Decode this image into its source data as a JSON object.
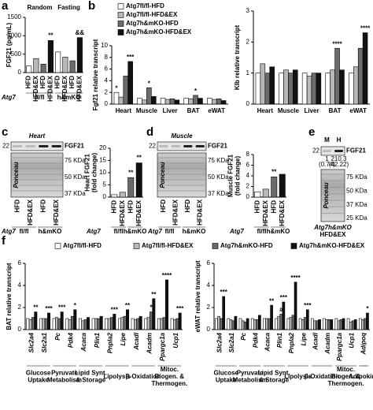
{
  "panel_labels": [
    "a",
    "b",
    "c",
    "d",
    "e",
    "f"
  ],
  "chart_data": [
    {
      "type": "bar",
      "ylabel": "FGF21 (pg/mL)",
      "categories": [
        "HFD",
        "HFD&EX",
        "HFD",
        "HFD&EX",
        "HFD",
        "HFD&EX",
        "HFD",
        "HFD&EX"
      ],
      "values": [
        180,
        380,
        230,
        870,
        560,
        420,
        320,
        950
      ],
      "colors": [
        "#ffffff",
        "#b8b8b8",
        "#6b6b6b",
        "#111111",
        "#ffffff",
        "#b8b8b8",
        "#6b6b6b",
        "#111111"
      ],
      "annotations": [
        null,
        null,
        null,
        "**",
        null,
        null,
        null,
        "&&"
      ],
      "ylim": [
        0,
        1500
      ],
      "yticks": [
        0,
        500,
        1000,
        1500
      ],
      "top_groups": [
        {
          "label": "Random",
          "span": [
            0,
            3
          ]
        },
        {
          "label": "Fasting",
          "span": [
            4,
            7
          ]
        }
      ],
      "genotype": {
        "label": "Atg7",
        "groups": [
          {
            "label": "fl/fl",
            "span": [
              0,
              3
            ]
          },
          {
            "label": "h&mKO",
            "span": [
              4,
              7
            ]
          }
        ]
      }
    },
    {
      "type": "bar",
      "ylabel": "Fgf21 relative transcript",
      "categories": [
        "Heart",
        "Muscle",
        "Liver",
        "BAT",
        "eWAT"
      ],
      "ylim": [
        0,
        10
      ],
      "yticks": [
        0,
        2,
        4,
        6,
        8,
        10
      ],
      "series": [
        {
          "name": "Atg7fl/fl-HFD",
          "color": "#ffffff",
          "values": [
            2.0,
            1.0,
            1.0,
            1.0,
            1.0
          ],
          "annotations": [
            "*",
            null,
            null,
            null,
            null
          ]
        },
        {
          "name": "Atg7fl/fl-HFD&EX",
          "color": "#b8b8b8",
          "values": [
            1.2,
            0.7,
            0.8,
            0.9,
            0.8
          ],
          "annotations": [
            null,
            null,
            null,
            null,
            null
          ]
        },
        {
          "name": "Atg7h&mKO-HFD",
          "color": "#6b6b6b",
          "values": [
            4.8,
            2.8,
            0.9,
            1.5,
            0.9
          ],
          "annotations": [
            null,
            "*",
            null,
            "*",
            null
          ]
        },
        {
          "name": "Atg7h&mKO-HFD&EX",
          "color": "#111111",
          "values": [
            7.3,
            1.3,
            0.7,
            1.0,
            0.6
          ],
          "annotations": [
            "***",
            null,
            null,
            null,
            null
          ]
        }
      ]
    },
    {
      "type": "bar",
      "ylabel": "Klb relative transcript",
      "categories": [
        "Heart",
        "Muscle",
        "Liver",
        "BAT",
        "eWAT"
      ],
      "ylim": [
        0,
        3
      ],
      "yticks": [
        0,
        1,
        2,
        3
      ],
      "series": [
        {
          "color": "#ffffff",
          "values": [
            1.0,
            1.0,
            1.0,
            1.0,
            1.0
          ],
          "annotations": [
            null,
            null,
            null,
            null,
            null
          ]
        },
        {
          "color": "#b8b8b8",
          "values": [
            1.3,
            1.1,
            0.9,
            1.1,
            1.2
          ],
          "annotations": [
            null,
            null,
            null,
            null,
            null
          ]
        },
        {
          "color": "#6b6b6b",
          "values": [
            1.0,
            1.0,
            1.0,
            1.8,
            1.8
          ],
          "annotations": [
            null,
            null,
            null,
            "****",
            null
          ]
        },
        {
          "color": "#111111",
          "values": [
            1.2,
            1.1,
            1.0,
            1.1,
            2.3
          ],
          "annotations": [
            null,
            null,
            null,
            null,
            "****"
          ]
        }
      ]
    },
    {
      "type": "bar",
      "ylabel": "Heart FGF21\n(fold change)",
      "categories": [
        "HFD",
        "HFD&EX",
        "HFD",
        "HFD&EX"
      ],
      "values": [
        1,
        2,
        8,
        14
      ],
      "colors": [
        "#ffffff",
        "#b8b8b8",
        "#6b6b6b",
        "#111111"
      ],
      "annotations": [
        null,
        null,
        "**",
        "**"
      ],
      "ylim": [
        0,
        20
      ],
      "yticks": [
        0,
        5,
        10,
        15,
        20
      ],
      "genotype": {
        "label": "Atg7",
        "groups": [
          {
            "label": "fl/fl",
            "span": [
              0,
              1
            ]
          },
          {
            "label": "h&mKO",
            "span": [
              2,
              3
            ]
          }
        ]
      }
    },
    {
      "type": "bar",
      "ylabel": "Muscle FGF21\n(fold change)",
      "categories": [
        "HFD",
        "HFD&EX",
        "HFD",
        "HFD&EX"
      ],
      "values": [
        1,
        1.5,
        3.8,
        4.3
      ],
      "colors": [
        "#ffffff",
        "#b8b8b8",
        "#6b6b6b",
        "#111111"
      ],
      "annotations": [
        null,
        null,
        "**",
        null
      ],
      "ylim": [
        0,
        8
      ],
      "yticks": [
        0,
        2,
        4,
        6,
        8
      ],
      "genotype": {
        "label": "Atg7",
        "groups": [
          {
            "label": "fl/fl",
            "span": [
              0,
              1
            ]
          },
          {
            "label": "h&mKO",
            "span": [
              2,
              3
            ]
          }
        ]
      }
    },
    {
      "type": "bar",
      "ylabel": "BAT relative transcript",
      "categories": [
        "Slc2a4",
        "Slc2a1",
        "Pc",
        "Pdk4",
        "Acaca",
        "Plin1",
        "Pnpla2",
        "Lipe",
        "Acadl",
        "Acadm",
        "Ppargc1a",
        "Ucp1"
      ],
      "ylim": [
        0,
        6
      ],
      "yticks": [
        0,
        2,
        4,
        6
      ],
      "series": [
        {
          "name": "Atg7fl/fl-HFD",
          "color": "#ffffff",
          "values": [
            1,
            1,
            1,
            1,
            1,
            1,
            1,
            1,
            1,
            1,
            1,
            1
          ],
          "annotations": [
            null,
            null,
            null,
            null,
            null,
            null,
            null,
            null,
            null,
            null,
            null,
            null
          ]
        },
        {
          "name": "Atg7fl/fl-HFD&EX",
          "color": "#b8b8b8",
          "values": [
            0.9,
            1.0,
            1.1,
            0.9,
            0.8,
            1.0,
            1.0,
            1.1,
            0.9,
            1.1,
            1.0,
            0.9
          ],
          "annotations": [
            null,
            null,
            null,
            null,
            null,
            null,
            null,
            null,
            null,
            null,
            null,
            null
          ]
        },
        {
          "name": "Atg7h&mKO-HFD",
          "color": "#6b6b6b",
          "values": [
            1.1,
            1.0,
            1.0,
            1.2,
            0.9,
            1.0,
            1.1,
            1.2,
            1.0,
            1.6,
            1.1,
            1.0
          ],
          "annotations": [
            null,
            null,
            null,
            null,
            null,
            null,
            null,
            null,
            null,
            "*",
            null,
            null
          ]
        },
        {
          "name": "Atg7h&mKO-HFD&EX",
          "color": "#111111",
          "values": [
            1.6,
            1.5,
            1.6,
            1.8,
            1.1,
            1.2,
            1.4,
            1.8,
            1.2,
            2.8,
            4.5,
            1.5
          ],
          "annotations": [
            "**",
            "***",
            "***",
            "*",
            null,
            null,
            "***",
            "**",
            null,
            "**",
            "****",
            "***"
          ]
        }
      ],
      "groups": [
        {
          "label": "Glucose\nUptake",
          "span": [
            0,
            1
          ]
        },
        {
          "label": "Pyruvate\nMetabolism",
          "span": [
            2,
            3
          ]
        },
        {
          "label": "Lipid Synt.\n& Storage",
          "span": [
            4,
            5
          ]
        },
        {
          "label": "Lipolysis",
          "span": [
            6,
            7
          ]
        },
        {
          "label": "β-Oxidation",
          "span": [
            8,
            9
          ]
        },
        {
          "label": "Mitoc.\nBiogen. &\nThermogen.",
          "span": [
            10,
            11
          ]
        }
      ]
    },
    {
      "type": "bar",
      "ylabel": "eWAT relative transcript",
      "categories": [
        "Slc2a4",
        "Slc2a1",
        "Pc",
        "Pdk4",
        "Acaca",
        "Plin1",
        "Pnpla2",
        "Lipe",
        "Acadl",
        "Acadm",
        "Ppargc1a",
        "Ucp1",
        "Adipoq"
      ],
      "ylim": [
        0,
        6
      ],
      "yticks": [
        0,
        2,
        4,
        6
      ],
      "series": [
        {
          "color": "#ffffff",
          "values": [
            1,
            1,
            1,
            1,
            1,
            1,
            1,
            1,
            1,
            1,
            1,
            1,
            1
          ],
          "annotations": [
            null,
            null,
            null,
            null,
            null,
            null,
            null,
            null,
            null,
            null,
            null,
            null,
            null
          ]
        },
        {
          "color": "#b8b8b8",
          "values": [
            1.2,
            0.9,
            0.8,
            0.9,
            1.0,
            1.2,
            1.1,
            0.9,
            0.8,
            0.9,
            0.8,
            0.7,
            0.9
          ],
          "annotations": [
            null,
            null,
            null,
            null,
            null,
            null,
            null,
            null,
            null,
            null,
            null,
            null,
            null
          ]
        },
        {
          "color": "#6b6b6b",
          "values": [
            1.0,
            0.8,
            0.7,
            0.9,
            1.0,
            1.4,
            1.3,
            1.1,
            0.8,
            0.9,
            0.9,
            0.8,
            1.0
          ],
          "annotations": [
            null,
            null,
            null,
            null,
            null,
            "#",
            null,
            null,
            null,
            null,
            null,
            null,
            null
          ]
        },
        {
          "color": "#111111",
          "values": [
            3.0,
            1.2,
            1.0,
            1.3,
            2.2,
            2.5,
            4.3,
            1.8,
            0.9,
            0.9,
            1.0,
            0.9,
            1.5
          ],
          "annotations": [
            "***",
            null,
            null,
            null,
            "**",
            "***",
            "****",
            "***",
            null,
            null,
            null,
            null,
            "*"
          ]
        }
      ],
      "groups": [
        {
          "label": "Glucose\nUptake",
          "span": [
            0,
            1
          ]
        },
        {
          "label": "Pyruvate\nMetabolism",
          "span": [
            2,
            3
          ]
        },
        {
          "label": "Lipid Synt.\n& Storage",
          "span": [
            4,
            5
          ]
        },
        {
          "label": "Lipolysis",
          "span": [
            6,
            7
          ]
        },
        {
          "label": "β-Oxidation",
          "span": [
            8,
            9
          ]
        },
        {
          "label": "Mitoc.\nBiogen. &\nThermogen.",
          "span": [
            10,
            11
          ]
        },
        {
          "label": "Adipokine",
          "span": [
            12,
            12
          ]
        }
      ]
    }
  ],
  "blots": [
    {
      "title": "Heart",
      "band": "FGF21",
      "ladder": "22",
      "markers": [
        "75 KDa",
        "50 KDa",
        "37 KDa"
      ],
      "stain": "Ponceau",
      "lanes": [
        "HFD",
        "HFD&EX",
        "HFD",
        "HFD&EX"
      ],
      "genotype": {
        "label": "Atg7",
        "groups": [
          {
            "label": "fl/fl",
            "span": [
              0,
              1
            ]
          },
          {
            "label": "h&mKO",
            "span": [
              2,
              3
            ]
          }
        ]
      }
    },
    {
      "title": "Muscle",
      "band": "FGF21",
      "ladder": "22",
      "markers": [
        "75 KDa",
        "50 KDa",
        "37 KDa"
      ],
      "stain": "Ponceau",
      "lanes": [
        "HFD",
        "HFD&EX",
        "HFD",
        "HFD&EX"
      ],
      "genotype": {
        "label": "Atg7",
        "groups": [
          {
            "label": "fl/fl",
            "span": [
              0,
              1
            ]
          },
          {
            "label": "h&mKO",
            "span": [
              2,
              3
            ]
          }
        ]
      }
    },
    {
      "lanes": [
        "M",
        "H"
      ],
      "band": "FGF21",
      "ladder": "22",
      "quant": [
        "1",
        "210.3"
      ],
      "quant2": [
        "(0.74)",
        "(42.22)"
      ],
      "markers": [
        "75 KDa",
        "50 KDa",
        "37 KDa",
        "25 KDa"
      ],
      "stain": "Ponceau",
      "sample": [
        "Atg7h&mKO",
        "HFD&EX"
      ]
    }
  ]
}
